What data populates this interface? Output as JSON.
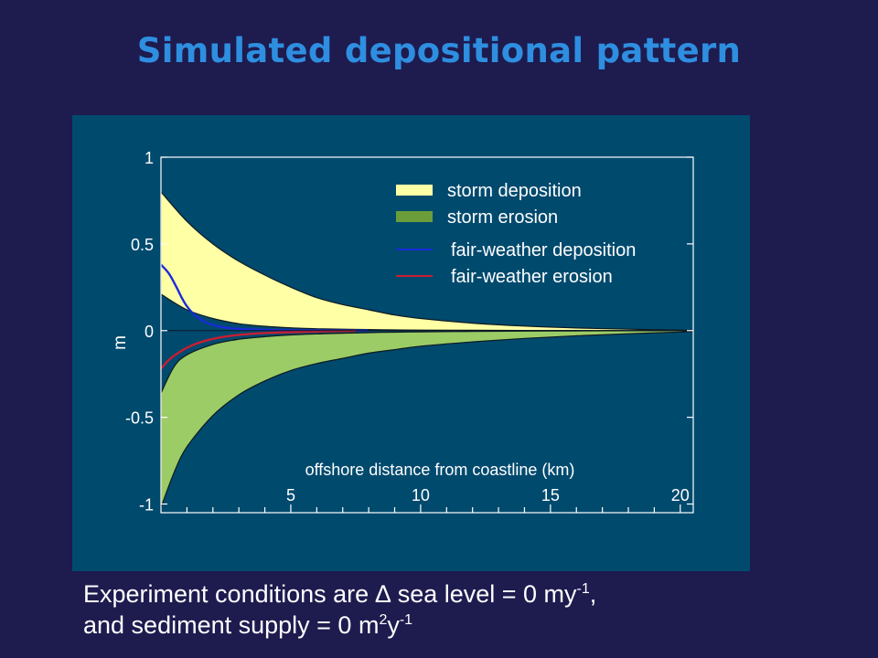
{
  "slide": {
    "title": "Simulated depositional pattern",
    "caption": {
      "line1_prefix": "Experiment conditions are ",
      "delta_symbol": "∆",
      "line1_mid": " sea level = 0 my",
      "line1_sup": "-1",
      "line1_suffix": ",",
      "line2_prefix": "and sediment supply = 0 m",
      "line2_sup1": "2",
      "line2_mid": "y",
      "line2_sup2": "-1"
    }
  },
  "colors": {
    "background": "#1e1b4f",
    "panel": "#004a6e",
    "title": "#2e8ee0",
    "storm_deposition": "#ffffa6",
    "storm_erosion": "#9ccc66",
    "storm_erosion_legend": "#6b9e3a",
    "fair_weather_deposition": "#1a2cd8",
    "fair_weather_erosion": "#c81e32"
  },
  "chart_data": {
    "type": "area",
    "xlabel": "offshore distance from coastline (km)",
    "ylabel": "m",
    "xlim": [
      0,
      20.5
    ],
    "ylim": [
      -1.05,
      1
    ],
    "x_ticks": [
      5,
      10,
      15,
      20
    ],
    "x_tick_labels": [
      "5",
      "10",
      "15",
      "20"
    ],
    "y_ticks": [
      1,
      0.5,
      0,
      -0.5,
      -1
    ],
    "y_tick_labels": [
      "1",
      "0.5",
      "0",
      "-0.5",
      "-1"
    ],
    "grid": false,
    "legend_position": "top-right",
    "series": [
      {
        "name": "storm deposition",
        "kind": "band",
        "x": [
          0,
          1,
          2,
          3,
          4,
          5,
          6,
          7,
          8,
          9,
          10,
          12,
          14,
          16,
          18,
          20,
          20.5
        ],
        "upper": [
          0.8,
          0.63,
          0.5,
          0.4,
          0.32,
          0.25,
          0.19,
          0.15,
          0.12,
          0.09,
          0.07,
          0.043,
          0.026,
          0.015,
          0.008,
          0.003,
          0.002
        ],
        "lower": [
          0.21,
          0.12,
          0.07,
          0.04,
          0.025,
          0.016,
          0.011,
          0.008,
          0.006,
          0.004,
          0.003,
          0.002,
          0.001,
          0.001,
          0.0005,
          0.0002,
          0.0001
        ]
      },
      {
        "name": "storm erosion",
        "kind": "band",
        "x": [
          0,
          0.5,
          1,
          2,
          3,
          4,
          5,
          6,
          7,
          8,
          9,
          10,
          12,
          14,
          16,
          18,
          20,
          20.5
        ],
        "upper": [
          -0.36,
          -0.21,
          -0.14,
          -0.08,
          -0.05,
          -0.035,
          -0.025,
          -0.019,
          -0.015,
          -0.012,
          -0.009,
          -0.007,
          -0.005,
          -0.003,
          -0.002,
          -0.001,
          -0.0005,
          -0.0003
        ],
        "lower": [
          -1.02,
          -0.82,
          -0.67,
          -0.49,
          -0.37,
          -0.29,
          -0.23,
          -0.19,
          -0.16,
          -0.13,
          -0.11,
          -0.09,
          -0.065,
          -0.045,
          -0.03,
          -0.018,
          -0.008,
          -0.005
        ]
      },
      {
        "name": "fair-weather deposition",
        "kind": "line",
        "x": [
          0,
          0.3,
          0.6,
          0.8,
          1,
          1.3,
          1.7,
          2.2,
          2.8,
          3.5,
          4.5,
          5.5,
          7,
          8
        ],
        "y": [
          0.38,
          0.33,
          0.25,
          0.19,
          0.14,
          0.09,
          0.05,
          0.025,
          0.012,
          0.006,
          0.003,
          0.0015,
          0.0005,
          0.0002
        ]
      },
      {
        "name": "fair-weather erosion",
        "kind": "line",
        "x": [
          0,
          0.3,
          0.7,
          1.2,
          1.8,
          2.5,
          3.3,
          4.2,
          5.2,
          6.3,
          7.5
        ],
        "y": [
          -0.22,
          -0.17,
          -0.125,
          -0.085,
          -0.055,
          -0.034,
          -0.021,
          -0.013,
          -0.008,
          -0.004,
          -0.002
        ]
      }
    ]
  }
}
